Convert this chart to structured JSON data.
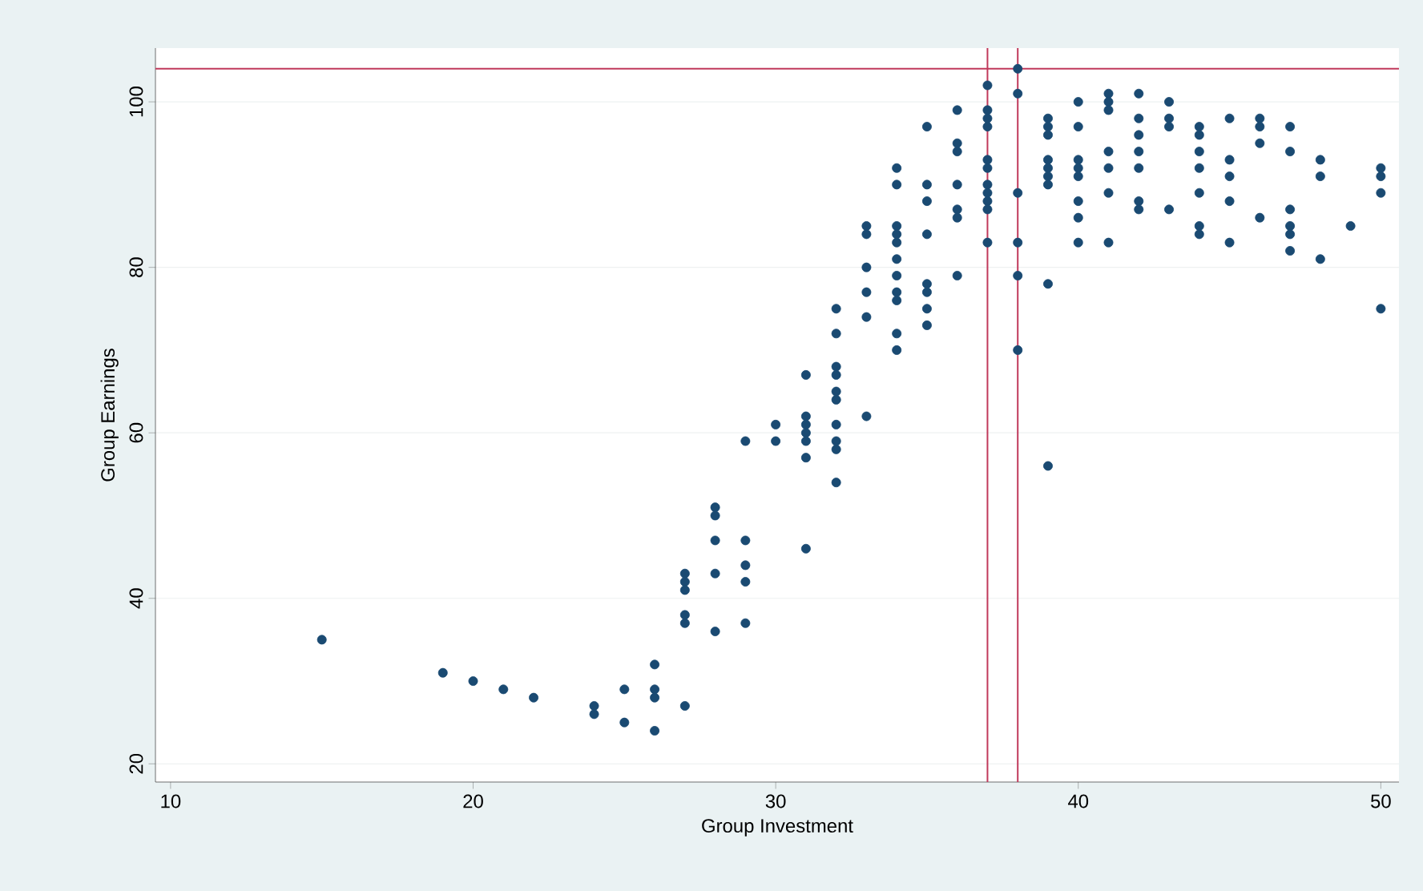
{
  "chart_data": {
    "type": "scatter",
    "xlabel": "Group Investment",
    "ylabel": "Group Earnings",
    "x": [
      15,
      19,
      20,
      21,
      22,
      24,
      24,
      25,
      25,
      26,
      26,
      26,
      26,
      27,
      27,
      27,
      27,
      27,
      27,
      28,
      28,
      28,
      28,
      28,
      29,
      29,
      29,
      29,
      29,
      30,
      30,
      31,
      31,
      31,
      31,
      31,
      31,
      31,
      32,
      32,
      32,
      32,
      32,
      32,
      32,
      32,
      32,
      32,
      33,
      33,
      33,
      33,
      33,
      33,
      34,
      34,
      34,
      34,
      34,
      34,
      34,
      34,
      34,
      34,
      34,
      35,
      35,
      35,
      35,
      35,
      35,
      35,
      35,
      36,
      36,
      36,
      36,
      36,
      36,
      36,
      37,
      37,
      37,
      37,
      37,
      37,
      37,
      37,
      37,
      37,
      37,
      38,
      38,
      38,
      38,
      38,
      38,
      39,
      39,
      39,
      39,
      39,
      39,
      39,
      39,
      39,
      40,
      40,
      40,
      40,
      40,
      40,
      40,
      40,
      41,
      41,
      41,
      41,
      41,
      41,
      41,
      42,
      42,
      42,
      42,
      42,
      42,
      42,
      43,
      43,
      43,
      43,
      44,
      44,
      44,
      44,
      44,
      44,
      44,
      45,
      45,
      45,
      45,
      45,
      46,
      46,
      46,
      46,
      47,
      47,
      47,
      47,
      47,
      47,
      48,
      48,
      48,
      49,
      50,
      50,
      50,
      50
    ],
    "values": [
      35,
      31,
      30,
      29,
      28,
      27,
      26,
      29,
      25,
      32,
      29,
      28,
      24,
      43,
      42,
      41,
      38,
      37,
      27,
      51,
      50,
      47,
      43,
      36,
      59,
      47,
      44,
      42,
      37,
      61,
      59,
      67,
      62,
      61,
      60,
      59,
      57,
      46,
      75,
      72,
      68,
      67,
      65,
      64,
      61,
      59,
      58,
      54,
      85,
      84,
      80,
      77,
      74,
      62,
      92,
      90,
      85,
      84,
      83,
      81,
      79,
      77,
      76,
      72,
      70,
      97,
      90,
      88,
      84,
      78,
      77,
      75,
      73,
      99,
      95,
      94,
      90,
      87,
      86,
      79,
      102,
      99,
      98,
      97,
      93,
      92,
      90,
      89,
      88,
      87,
      83,
      104,
      101,
      89,
      83,
      79,
      70,
      98,
      97,
      96,
      93,
      92,
      91,
      90,
      78,
      56,
      100,
      97,
      93,
      92,
      91,
      88,
      86,
      83,
      101,
      100,
      99,
      94,
      92,
      89,
      83,
      101,
      98,
      96,
      94,
      92,
      88,
      87,
      100,
      98,
      97,
      87,
      97,
      96,
      94,
      92,
      89,
      85,
      84,
      98,
      93,
      91,
      88,
      83,
      98,
      97,
      95,
      86,
      97,
      94,
      87,
      85,
      84,
      82,
      93,
      91,
      81,
      85,
      92,
      91,
      89,
      75
    ],
    "color": "#1a4a72",
    "marker": "circle",
    "grid": "y",
    "xlim": [
      9.5,
      50.6
    ],
    "ylim": [
      17.8,
      106.5
    ],
    "xticks": [
      10,
      20,
      30,
      40,
      50
    ],
    "yticks": [
      20,
      40,
      60,
      80,
      100
    ],
    "ref_lines": [
      {
        "axis": "x",
        "value": 37,
        "color": "#c0395b"
      },
      {
        "axis": "x",
        "value": 38,
        "color": "#c0395b"
      },
      {
        "axis": "y",
        "value": 104,
        "color": "#c0395b"
      }
    ]
  }
}
